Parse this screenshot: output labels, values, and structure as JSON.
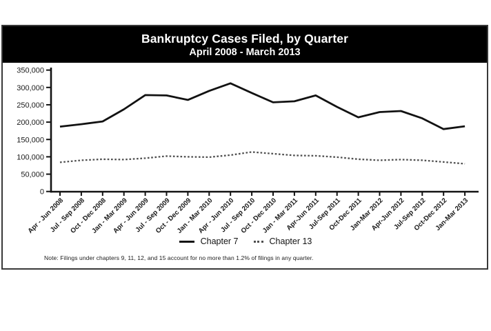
{
  "header": {
    "title": "Bankruptcy Cases Filed, by Quarter",
    "subtitle": "April 2008 - March 2013"
  },
  "footnote": "Note: Filings under chapters 9, 11, 12, and 15 account for no more than 1.2% of filings in any quarter.",
  "colors": {
    "band_background": "#000000",
    "band_text": "#ffffff",
    "axis": "#121212",
    "tick_label": "#1a1a1a",
    "chapter7_line": "#121212",
    "chapter13_line": "#4f4f4f",
    "panel_border": "#383838"
  },
  "chart_data": {
    "type": "line",
    "title": "Bankruptcy Cases Filed, by Quarter",
    "subtitle": "April 2008 - March 2013",
    "categories": [
      "Apr - Jun 2008",
      "Jul - Sep 2008",
      "Oct - Dec 2008",
      "Jan - Mar 2009",
      "Apr - Jun 2009",
      "Jul - Sep 2009",
      "Oct - Dec 2009",
      "Jan - Mar 2010",
      "Apr - Jun 2010",
      "Jul - Sep 2010",
      "Oct - Dec 2010",
      "Jan - Mar 2011",
      "Apr-Jun 2011",
      "Jul-Sep 2011",
      "Oct-Dec 2011",
      "Jan-Mar 2012",
      "Apr-Jun 2012",
      "Jul-Sep 2012",
      "Oct-Dec 2012",
      "Jan-Mar 2013"
    ],
    "series": [
      {
        "name": "Chapter 7",
        "line_style": "solid",
        "color": "#121212",
        "values": [
          187000,
          194000,
          202000,
          237000,
          278000,
          277000,
          264000,
          290000,
          312000,
          284000,
          257000,
          260000,
          277000,
          244000,
          214000,
          229000,
          232000,
          211000,
          180000,
          188000
        ]
      },
      {
        "name": "Chapter 13",
        "line_style": "dotted",
        "color": "#4f4f4f",
        "values": [
          84000,
          90000,
          93000,
          92000,
          96000,
          102000,
          100000,
          99000,
          105000,
          114000,
          109000,
          104000,
          103000,
          99000,
          93000,
          90000,
          92000,
          90000,
          85000,
          80000
        ]
      }
    ],
    "ylim": [
      0,
      350000
    ],
    "y_ticks": [
      350000,
      300000,
      250000,
      200000,
      150000,
      100000,
      50000,
      0
    ],
    "y_tick_labels": [
      "350,000",
      "300,000",
      "250,000",
      "200,000",
      "150,000",
      "100,000",
      "50,000",
      "0"
    ],
    "grid": false,
    "legend_position": "bottom-center",
    "x_label_rotation": -45
  }
}
